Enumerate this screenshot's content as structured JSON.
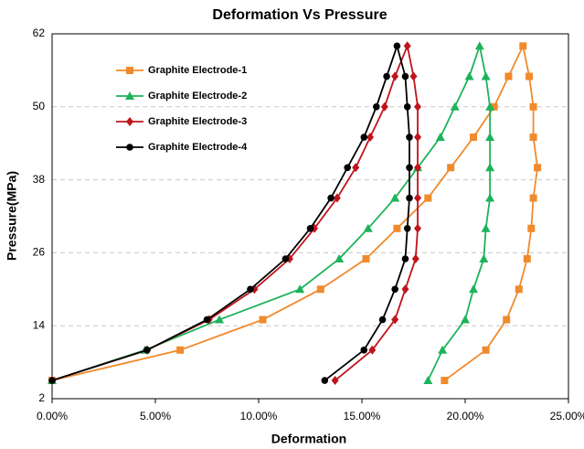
{
  "chart_data": {
    "type": "line",
    "title": "Deformation Vs Pressure",
    "xlabel": "Deformation",
    "ylabel": "Pressure(MPa)",
    "xlim": [
      0,
      25
    ],
    "ylim": [
      2,
      62
    ],
    "xticks": [
      {
        "value": 0,
        "label": "0.00%"
      },
      {
        "value": 5,
        "label": "5.00%"
      },
      {
        "value": 10,
        "label": "10.00%"
      },
      {
        "value": 15,
        "label": "15.00%"
      },
      {
        "value": 20,
        "label": "20.00%"
      },
      {
        "value": 25,
        "label": "25.00%"
      }
    ],
    "yticks": [
      2,
      14,
      26,
      38,
      50,
      62
    ],
    "grid": true,
    "legend": "upper left",
    "series": [
      {
        "name": "Graphite Electrode-1",
        "color": "#f08a2c",
        "marker": "square",
        "x": [
          0,
          6.2,
          10.2,
          13.0,
          15.2,
          16.7,
          18.2,
          19.3,
          20.4,
          21.4,
          22.1,
          22.8,
          23.1,
          23.3,
          23.3,
          23.5,
          23.3,
          23.2,
          23.0,
          22.6,
          22.0,
          21.0,
          19.0
        ],
        "values": [
          5,
          10,
          15,
          20,
          25,
          30,
          35,
          40,
          45,
          50,
          55,
          60,
          55,
          50,
          45,
          40,
          35,
          30,
          25,
          20,
          15,
          10,
          5
        ]
      },
      {
        "name": "Graphite Electrode-2",
        "color": "#1db35a",
        "marker": "triangle",
        "x": [
          0,
          4.5,
          8.1,
          12.0,
          13.9,
          15.3,
          16.6,
          17.7,
          18.8,
          19.5,
          20.2,
          20.7,
          21.0,
          21.2,
          21.2,
          21.2,
          21.2,
          21.0,
          20.9,
          20.4,
          20.0,
          18.9,
          18.2
        ],
        "values": [
          5,
          10,
          15,
          20,
          25,
          30,
          35,
          40,
          45,
          50,
          55,
          60,
          55,
          50,
          45,
          40,
          35,
          30,
          25,
          20,
          15,
          10,
          5
        ]
      },
      {
        "name": "Graphite Electrode-3",
        "color": "#c0141c",
        "marker": "diamond",
        "x": [
          0,
          4.6,
          7.6,
          9.8,
          11.5,
          12.7,
          13.8,
          14.7,
          15.4,
          16.1,
          16.6,
          17.2,
          17.5,
          17.7,
          17.7,
          17.7,
          17.7,
          17.7,
          17.6,
          17.1,
          16.6,
          15.5,
          13.7
        ],
        "values": [
          5,
          10,
          15,
          20,
          25,
          30,
          35,
          40,
          45,
          50,
          55,
          60,
          55,
          50,
          45,
          40,
          35,
          30,
          25,
          20,
          15,
          10,
          5
        ]
      },
      {
        "name": "Graphite Electrode-4",
        "color": "#000000",
        "marker": "circle",
        "x": [
          0,
          4.6,
          7.5,
          9.6,
          11.3,
          12.5,
          13.5,
          14.3,
          15.1,
          15.7,
          16.2,
          16.7,
          17.1,
          17.2,
          17.3,
          17.3,
          17.3,
          17.2,
          17.1,
          16.6,
          16.0,
          15.1,
          13.2
        ],
        "values": [
          5,
          10,
          15,
          20,
          25,
          30,
          35,
          40,
          45,
          50,
          55,
          60,
          55,
          50,
          45,
          40,
          35,
          30,
          25,
          20,
          15,
          10,
          5
        ]
      }
    ]
  }
}
